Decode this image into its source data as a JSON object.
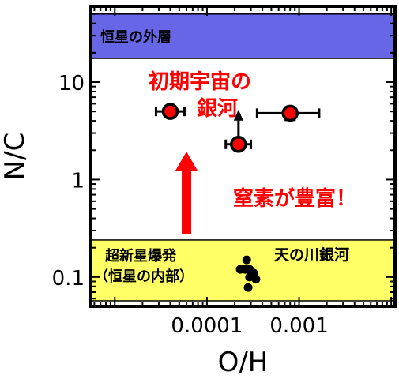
{
  "chart_data": {
    "type": "scatter",
    "title": "",
    "xlabel": "O/H",
    "ylabel": "N/C",
    "x_scale": "log",
    "y_scale": "log",
    "xlim": [
      5.5e-06,
      0.011
    ],
    "ylim": [
      0.05,
      60
    ],
    "x_ticks": [
      {
        "value": 1e-05,
        "label": ""
      },
      {
        "value": 0.0001,
        "label": "0.0001"
      },
      {
        "value": 0.001,
        "label": "0.001"
      }
    ],
    "y_ticks": [
      {
        "value": 0.1,
        "label": "0.1"
      },
      {
        "value": 1,
        "label": "1"
      },
      {
        "value": 10,
        "label": "10"
      }
    ],
    "grid": false,
    "bands": [
      {
        "name": "stellar-envelope",
        "label": "恒星の外層",
        "y_range": [
          17.5,
          50
        ],
        "color": "#6666e6"
      },
      {
        "name": "supernova",
        "label_lines": [
          "超新星爆発",
          "（恒星の内部）"
        ],
        "y_range": [
          0.057,
          0.24
        ],
        "color": "#ffff66"
      }
    ],
    "series": [
      {
        "name": "初期宇宙の銀河",
        "color": "#ff0000",
        "points": [
          {
            "x": 4e-05,
            "y": 5.0,
            "x_err": [
              1.2e-05,
              1.7e-05
            ]
          },
          {
            "x": 0.00022,
            "y": 2.3,
            "x_err": [
              6e-05,
              8e-05
            ],
            "lower_limit": true
          },
          {
            "x": 0.0008,
            "y": 4.8,
            "x_err": [
              0.00045,
              0.00085
            ],
            "y_err": [
              0.7,
              0.7
            ]
          }
        ]
      },
      {
        "name": "天の川銀河",
        "color": "#000000",
        "points": [
          {
            "x": 0.00027,
            "y": 0.15
          },
          {
            "x": 0.00023,
            "y": 0.12
          },
          {
            "x": 0.00026,
            "y": 0.12
          },
          {
            "x": 0.00029,
            "y": 0.12
          },
          {
            "x": 0.00032,
            "y": 0.11
          },
          {
            "x": 0.00029,
            "y": 0.1
          },
          {
            "x": 0.00034,
            "y": 0.095
          },
          {
            "x": 0.00028,
            "y": 0.078
          }
        ]
      }
    ],
    "annotations": [
      {
        "name": "early-galaxy-label",
        "lines": [
          "初期宇宙の",
          "銀河"
        ],
        "color": "#ff0000"
      },
      {
        "name": "nitrogen-rich-label",
        "text": "窒素が豊富！",
        "color": "#ff0000"
      },
      {
        "name": "milky-way-label",
        "text": "天の川銀河",
        "color": "#000000"
      }
    ]
  }
}
